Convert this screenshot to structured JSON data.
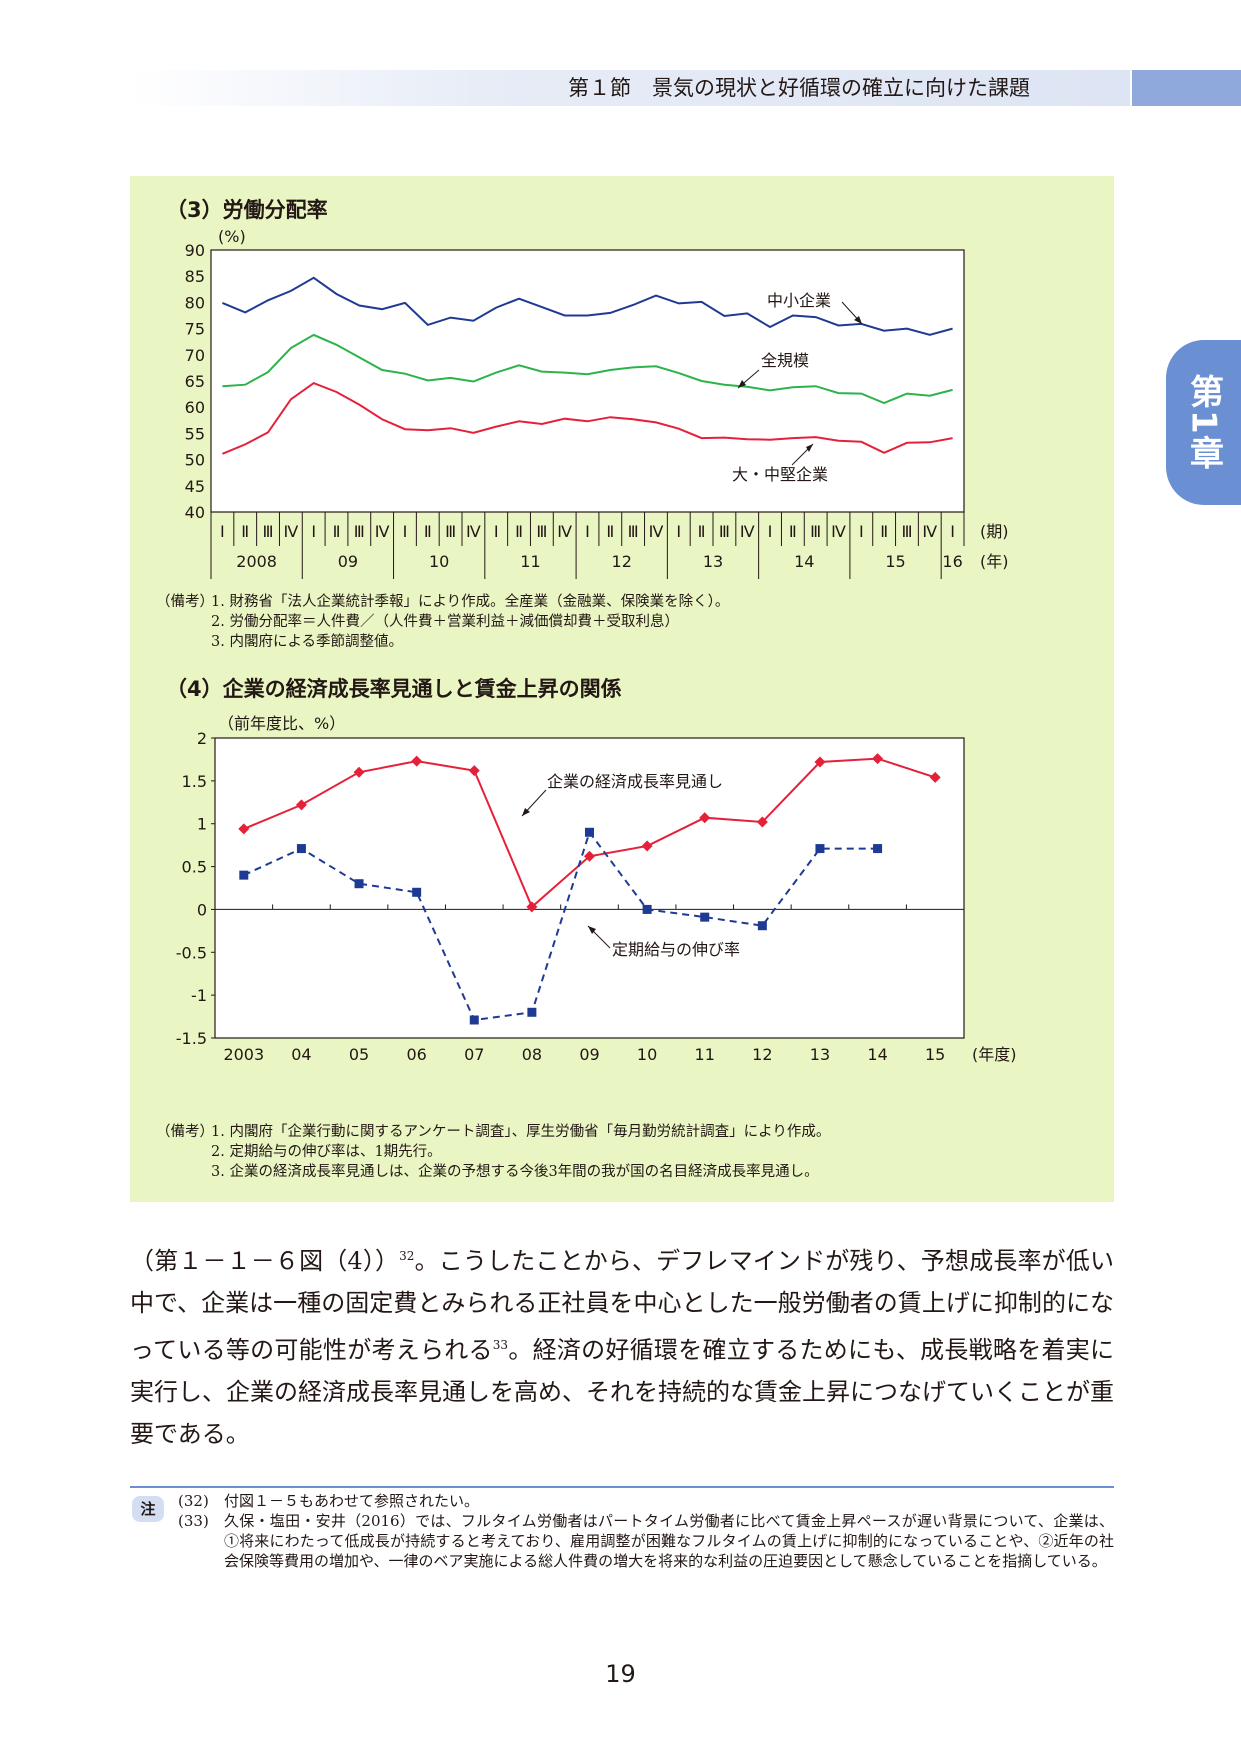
{
  "header": {
    "title": "第１節　景気の現状と好循環の確立に向けた課題"
  },
  "chapter_tab": {
    "label": "第1章"
  },
  "figure3": {
    "title": "（3）労働分配率",
    "y_unit": "(%)",
    "y_ticks": [
      "90",
      "85",
      "80",
      "75",
      "70",
      "65",
      "60",
      "55",
      "50",
      "45",
      "40"
    ],
    "quarter_labels": [
      "Ⅰ",
      "Ⅱ",
      "Ⅲ",
      "Ⅳ"
    ],
    "quarter_unit": "(期)",
    "year_unit": "(年)",
    "years": [
      "2008",
      "09",
      "10",
      "11",
      "12",
      "13",
      "14",
      "15",
      "16"
    ],
    "annotations": {
      "small": "中小企業",
      "all": "全規模",
      "large": "大・中堅企業"
    },
    "notes_head": "（備考）",
    "notes": [
      "1.  財務省「法人企業統計季報」により作成。全産業（金融業、保険業を除く）。",
      "2.  労働分配率＝人件費／（人件費＋営業利益＋減価償却費＋受取利息）",
      "3.  内閣府による季節調整値。"
    ]
  },
  "figure4": {
    "title": "（4）企業の経済成長率見通しと賃金上昇の関係",
    "y_unit": "（前年度比、%）",
    "y_ticks": [
      "2",
      "1.5",
      "1",
      "0.5",
      "0",
      "-0.5",
      "-1",
      "-1.5"
    ],
    "x_labels": [
      "2003",
      "04",
      "05",
      "06",
      "07",
      "08",
      "09",
      "10",
      "11",
      "12",
      "13",
      "14",
      "15"
    ],
    "x_unit": "(年度)",
    "annotations": {
      "growth": "企業の経済成長率見通し",
      "wage": "定期給与の伸び率"
    },
    "notes_head": "（備考）",
    "notes": [
      "1.  内閣府「企業行動に関するアンケート調査」、厚生労働省「毎月勤労統計調査」により作成。",
      "2.  定期給与の伸び率は、1期先行。",
      "3.  企業の経済成長率見通しは、企業の予想する今後3年間の我が国の名目経済成長率見通し。"
    ]
  },
  "chart_data": [
    {
      "type": "line",
      "title": "（3）労働分配率",
      "ylabel": "(%)",
      "ylim": [
        40,
        90
      ],
      "x": [
        "2008Ⅰ",
        "2008Ⅱ",
        "2008Ⅲ",
        "2008Ⅳ",
        "09Ⅰ",
        "09Ⅱ",
        "09Ⅲ",
        "09Ⅳ",
        "10Ⅰ",
        "10Ⅱ",
        "10Ⅲ",
        "10Ⅳ",
        "11Ⅰ",
        "11Ⅱ",
        "11Ⅲ",
        "11Ⅳ",
        "12Ⅰ",
        "12Ⅱ",
        "12Ⅲ",
        "12Ⅳ",
        "13Ⅰ",
        "13Ⅱ",
        "13Ⅲ",
        "13Ⅳ",
        "14Ⅰ",
        "14Ⅱ",
        "14Ⅲ",
        "14Ⅳ",
        "15Ⅰ",
        "15Ⅱ",
        "15Ⅲ",
        "15Ⅳ",
        "16Ⅰ"
      ],
      "series": [
        {
          "name": "中小企業",
          "color": "#1f3a93",
          "values": [
            79.9,
            78.1,
            80.4,
            82.2,
            84.7,
            81.6,
            79.4,
            78.7,
            79.9,
            75.7,
            77.1,
            76.5,
            79.0,
            80.7,
            79.1,
            77.5,
            77.5,
            78.0,
            79.5,
            81.3,
            79.8,
            80.1,
            77.4,
            77.9,
            75.3,
            77.5,
            77.2,
            75.6,
            75.9,
            74.6,
            75.0,
            73.8,
            75.0
          ]
        },
        {
          "name": "全規模",
          "color": "#2db34a",
          "values": [
            64.0,
            64.3,
            66.7,
            71.3,
            73.8,
            71.9,
            69.5,
            67.1,
            66.4,
            65.1,
            65.6,
            64.9,
            66.6,
            68.0,
            66.8,
            66.6,
            66.3,
            67.1,
            67.6,
            67.8,
            66.5,
            65.0,
            64.3,
            63.9,
            63.2,
            63.8,
            64.0,
            62.7,
            62.6,
            60.8,
            62.6,
            62.2,
            63.3
          ]
        },
        {
          "name": "大・中堅企業",
          "color": "#e5213a",
          "values": [
            51.1,
            52.9,
            55.2,
            61.5,
            64.6,
            62.9,
            60.5,
            57.7,
            55.8,
            55.6,
            56.0,
            55.1,
            56.3,
            57.3,
            56.8,
            57.8,
            57.3,
            58.1,
            57.7,
            57.1,
            55.9,
            54.1,
            54.2,
            53.9,
            53.8,
            54.1,
            54.3,
            53.6,
            53.4,
            51.3,
            53.2,
            53.3,
            54.1
          ]
        }
      ]
    },
    {
      "type": "line",
      "title": "（4）企業の経済成長率見通しと賃金上昇の関係",
      "ylabel": "（前年度比、%）",
      "ylim": [
        -1.5,
        2
      ],
      "categories": [
        "2003",
        "04",
        "05",
        "06",
        "07",
        "08",
        "09",
        "10",
        "11",
        "12",
        "13",
        "14",
        "15"
      ],
      "series": [
        {
          "name": "企業の経済成長率見通し",
          "color": "#e5213a",
          "values": [
            0.94,
            1.22,
            1.6,
            1.73,
            1.62,
            0.03,
            0.62,
            0.74,
            1.07,
            1.02,
            1.72,
            1.76,
            1.54
          ]
        },
        {
          "name": "定期給与の伸び率",
          "color": "#1f3a93",
          "values": [
            0.4,
            0.71,
            0.3,
            0.2,
            -1.29,
            -1.2,
            0.9,
            0.0,
            -0.09,
            -0.19,
            0.71,
            0.71,
            null
          ]
        }
      ]
    }
  ],
  "body": {
    "text_1": "（第１－１－６図（4））",
    "sup_1": "32",
    "text_2": "。こうしたことから、デフレマインドが残り、予想成長率が低い中で、企業は一種の固定費とみられる正社員を中心とした一般労働者の賃上げに抑制的になっている等の可能性が考えられる",
    "sup_2": "33",
    "text_3": "。経済の好循環を確立するためにも、成長戦略を着実に実行し、企業の経済成長率見通しを高め、それを持続的な賃金上昇につなげていくことが重要である。"
  },
  "footnotes": {
    "badge": "注",
    "items": [
      {
        "num": "(32)",
        "text": "付図１－５もあわせて参照されたい。"
      },
      {
        "num": "(33)",
        "text": "久保・塩田・安井（2016）では、フルタイム労働者はパートタイム労働者に比べて賃金上昇ペースが遅い背景について、企業は、①将来にわたって低成長が持続すると考えており、雇用調整が困難なフルタイムの賃上げに抑制的になっていることや、②近年の社会保険等費用の増加や、一律のベア実施による総人件費の増大を将来的な利益の圧迫要因として懸念していることを指摘している。"
      }
    ]
  },
  "page_number": "19"
}
